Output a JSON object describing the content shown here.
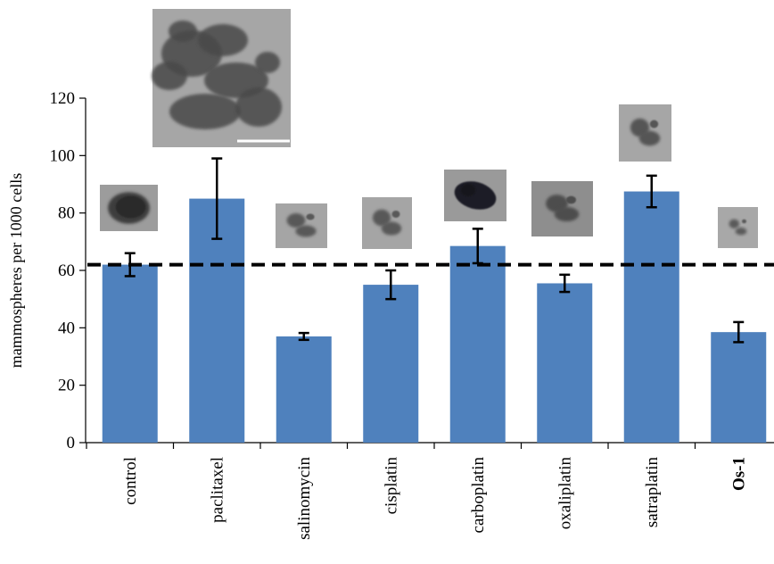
{
  "chart_data": {
    "type": "bar",
    "categories": [
      "control",
      "paclitaxel",
      "salinomycin",
      "cisplatin",
      "carboplatin",
      "oxaliplatin",
      "satraplatin",
      "Os-1"
    ],
    "bold_categories": [
      "Os-1"
    ],
    "values": [
      62,
      85,
      37,
      55,
      68.5,
      55.5,
      87.5,
      38.5
    ],
    "error": [
      4,
      14,
      1.2,
      5,
      6,
      3,
      5.5,
      3.5
    ],
    "ylabel": "mammospheres per 1000 cells",
    "ylim": [
      0,
      120
    ],
    "yticks": [
      0,
      20,
      40,
      60,
      80,
      100,
      120
    ],
    "reference_line": {
      "value": 62,
      "style": "dashed"
    },
    "bar_color": "#4f81bd",
    "grid": false,
    "legend": "none",
    "insets": [
      {
        "category": "control",
        "description": "dense spherical mammosphere",
        "scale_bar": false
      },
      {
        "category": "paclitaxel",
        "description": "large loose cell clusters",
        "scale_bar": true
      },
      {
        "category": "salinomycin",
        "description": "small irregular cluster",
        "scale_bar": false
      },
      {
        "category": "cisplatin",
        "description": "small irregular cluster",
        "scale_bar": false
      },
      {
        "category": "carboplatin",
        "description": "dark compact sphere",
        "scale_bar": false
      },
      {
        "category": "oxaliplatin",
        "description": "loose cluster",
        "scale_bar": false
      },
      {
        "category": "satraplatin",
        "description": "small loose cluster",
        "scale_bar": false
      },
      {
        "category": "Os-1",
        "description": "tiny cluster",
        "scale_bar": false
      }
    ]
  }
}
